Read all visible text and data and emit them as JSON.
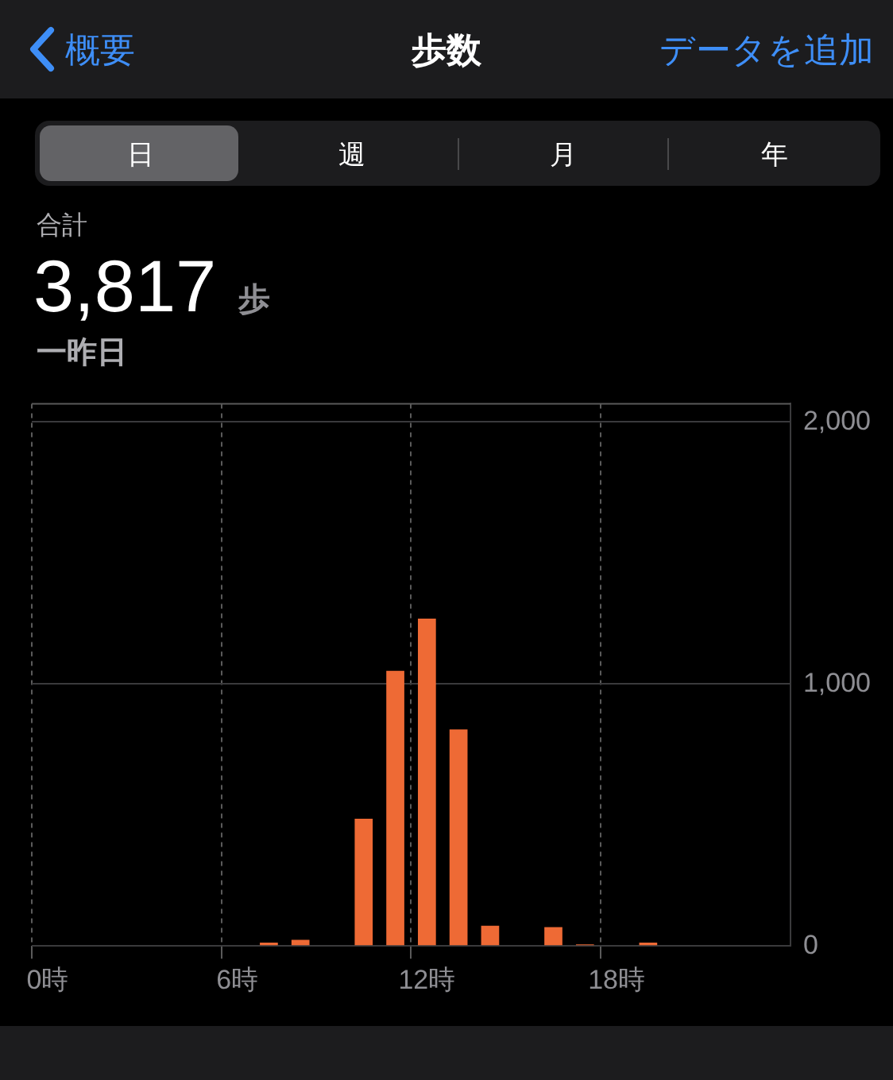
{
  "chart_data": {
    "type": "bar",
    "title": "歩数",
    "annotations": [
      "概要",
      "データを追加",
      "日",
      "週",
      "月",
      "年",
      "合計",
      "3,817",
      "歩",
      "一昨日"
    ],
    "categories": [
      "0時",
      null,
      null,
      null,
      null,
      null,
      "6時",
      null,
      null,
      null,
      null,
      null,
      "12時",
      null,
      null,
      null,
      null,
      null,
      "18時",
      null,
      null,
      null,
      null,
      null
    ],
    "values": [
      0,
      0,
      0,
      0,
      0,
      0,
      0,
      13,
      23,
      0,
      486,
      1050,
      1250,
      827,
      77,
      0,
      72,
      6,
      0,
      13,
      0,
      0,
      0,
      0
    ],
    "color": "#ee6a35",
    "ylim": [
      0,
      2070
    ],
    "yticks": [
      {
        "value": 0,
        "label": "0"
      },
      {
        "value": 1000,
        "label": "1,000"
      },
      {
        "value": 2000,
        "label": "2,000"
      }
    ],
    "grid": true,
    "legend": false
  }
}
